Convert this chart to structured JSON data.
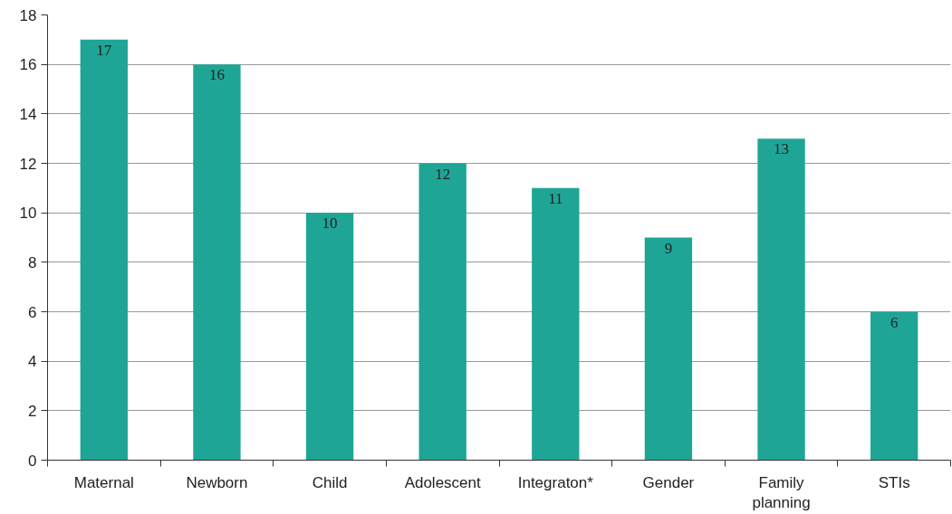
{
  "chart_data": {
    "type": "bar",
    "categories": [
      "Maternal",
      "Newborn",
      "Child",
      "Adolescent",
      "Integraton*",
      "Gender",
      "Family planning",
      "STIs"
    ],
    "values": [
      17,
      16,
      10,
      12,
      11,
      9,
      13,
      6
    ],
    "color": "#1fa596",
    "ylim": [
      0,
      18
    ],
    "yticks": [
      0,
      2,
      4,
      6,
      8,
      10,
      12,
      14,
      16,
      18
    ],
    "grid": "y",
    "data_labels": true
  }
}
